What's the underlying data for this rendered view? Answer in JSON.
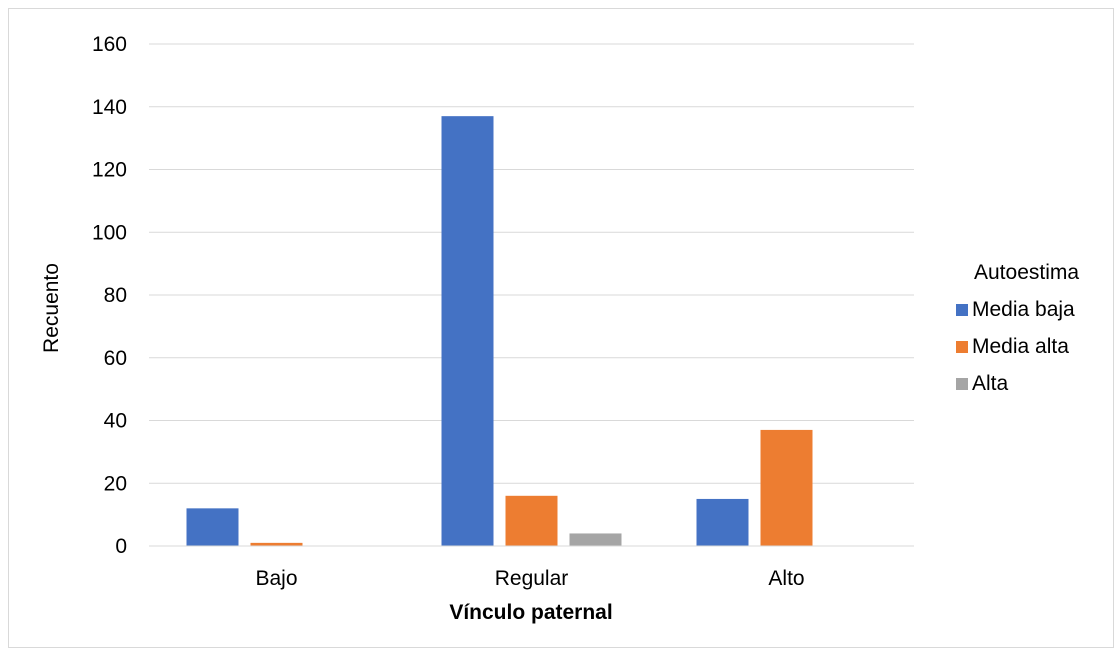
{
  "chart_data": {
    "type": "bar",
    "title": "",
    "xlabel": "Vínculo paternal",
    "ylabel": "Recuento",
    "categories": [
      "Bajo",
      "Regular",
      "Alto"
    ],
    "series": [
      {
        "name": "Media baja",
        "values": [
          12,
          137,
          15
        ],
        "color": "#4472c4"
      },
      {
        "name": "Media alta",
        "values": [
          1,
          16,
          37
        ],
        "color": "#ed7d31"
      },
      {
        "name": "Alta",
        "values": [
          0,
          4,
          0
        ],
        "color": "#a5a5a5"
      }
    ],
    "ylim": [
      0,
      160
    ],
    "yticks": [
      0,
      20,
      40,
      60,
      80,
      100,
      120,
      140,
      160
    ],
    "grid": true,
    "legend": {
      "title": "Autoestima",
      "position": "right"
    }
  }
}
